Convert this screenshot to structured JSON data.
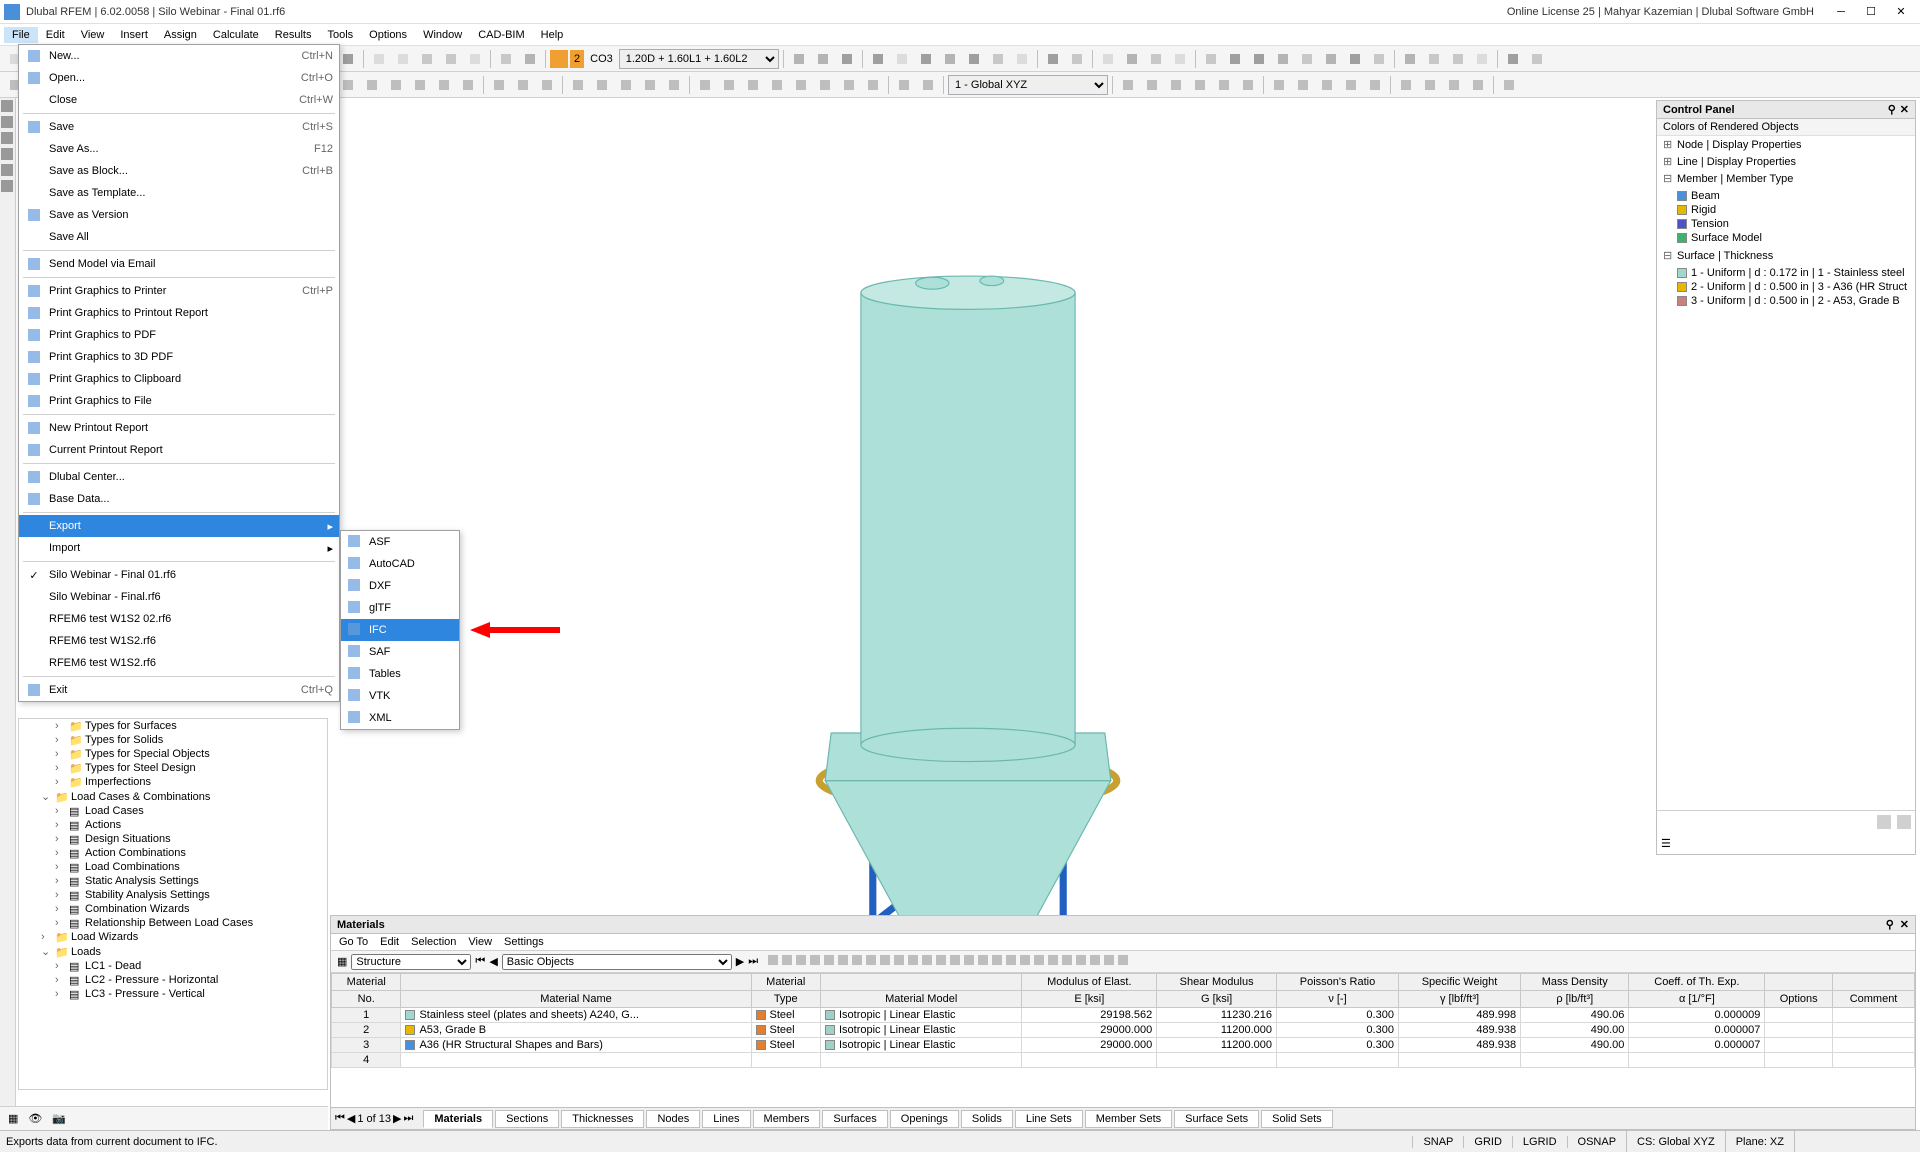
{
  "title": "Dlubal RFEM | 6.02.0058 | Silo Webinar - Final 01.rf6",
  "license": "Online License 25 | Mahyar Kazemian | Dlubal Software GmbH",
  "menubar": [
    "File",
    "Edit",
    "View",
    "Insert",
    "Assign",
    "Calculate",
    "Results",
    "Tools",
    "Options",
    "Window",
    "CAD-BIM",
    "Help"
  ],
  "toolbar2": {
    "combo": "CO3",
    "combo_detail": "1.20D + 1.60L1 + 1.60L2",
    "num": "2",
    "global": "1 - Global XYZ"
  },
  "file_menu": [
    {
      "t": "item",
      "label": "New...",
      "key": "Ctrl+N",
      "icon": "new"
    },
    {
      "t": "item",
      "label": "Open...",
      "key": "Ctrl+O",
      "icon": "open"
    },
    {
      "t": "item",
      "label": "Close",
      "key": "Ctrl+W"
    },
    {
      "t": "sep"
    },
    {
      "t": "item",
      "label": "Save",
      "key": "Ctrl+S",
      "icon": "save"
    },
    {
      "t": "item",
      "label": "Save As...",
      "key": "F12"
    },
    {
      "t": "item",
      "label": "Save as Block...",
      "key": "Ctrl+B"
    },
    {
      "t": "item",
      "label": "Save as Template..."
    },
    {
      "t": "item",
      "label": "Save as Version",
      "icon": "ver"
    },
    {
      "t": "item",
      "label": "Save All"
    },
    {
      "t": "sep"
    },
    {
      "t": "item",
      "label": "Send Model via Email",
      "icon": "mail"
    },
    {
      "t": "sep"
    },
    {
      "t": "item",
      "label": "Print Graphics to Printer",
      "key": "Ctrl+P",
      "icon": "print"
    },
    {
      "t": "item",
      "label": "Print Graphics to Printout Report",
      "icon": "rep"
    },
    {
      "t": "item",
      "label": "Print Graphics to PDF",
      "icon": "pdf"
    },
    {
      "t": "item",
      "label": "Print Graphics to 3D PDF",
      "icon": "3dpdf"
    },
    {
      "t": "item",
      "label": "Print Graphics to Clipboard",
      "icon": "clip"
    },
    {
      "t": "item",
      "label": "Print Graphics to File",
      "icon": "file"
    },
    {
      "t": "sep"
    },
    {
      "t": "item",
      "label": "New Printout Report",
      "icon": "newrep"
    },
    {
      "t": "item",
      "label": "Current Printout Report",
      "icon": "currep"
    },
    {
      "t": "sep"
    },
    {
      "t": "item",
      "label": "Dlubal Center...",
      "icon": "dl"
    },
    {
      "t": "item",
      "label": "Base Data...",
      "icon": "base"
    },
    {
      "t": "sep"
    },
    {
      "t": "item",
      "label": "Export",
      "sub": true,
      "hl": true
    },
    {
      "t": "item",
      "label": "Import",
      "sub": true
    },
    {
      "t": "sep"
    },
    {
      "t": "item",
      "label": "Silo Webinar - Final 01.rf6",
      "check": true
    },
    {
      "t": "item",
      "label": "Silo Webinar - Final.rf6"
    },
    {
      "t": "item",
      "label": "RFEM6 test W1S2 02.rf6"
    },
    {
      "t": "item",
      "label": "RFEM6 test W1S2.rf6"
    },
    {
      "t": "item",
      "label": "RFEM6 test W1S2.rf6"
    },
    {
      "t": "sep"
    },
    {
      "t": "item",
      "label": "Exit",
      "key": "Ctrl+Q",
      "icon": "exit"
    }
  ],
  "export_sub": [
    "ASF",
    "AutoCAD",
    "DXF",
    "glTF",
    "IFC",
    "SAF",
    "Tables",
    "VTK",
    "XML"
  ],
  "export_hl_index": 4,
  "panel": {
    "title": "Control Panel",
    "sub": "Colors of Rendered Objects",
    "groups": [
      {
        "label": "Node | Display Properties"
      },
      {
        "label": "Line | Display Properties"
      },
      {
        "label": "Member | Member Type",
        "exp": true,
        "items": [
          {
            "c": "#4a90d9",
            "t": "Beam"
          },
          {
            "c": "#e6b800",
            "t": "Rigid"
          },
          {
            "c": "#5050c8",
            "t": "Tension"
          },
          {
            "c": "#3cb371",
            "t": "Surface Model"
          }
        ]
      },
      {
        "label": "Surface | Thickness",
        "exp": true,
        "items": [
          {
            "c": "#9fd8d0",
            "t": "1 - Uniform | d : 0.172 in | 1 - Stainless steel"
          },
          {
            "c": "#e6b800",
            "t": "2 - Uniform | d : 0.500 in | 3 - A36 (HR Struct"
          },
          {
            "c": "#c88080",
            "t": "3 - Uniform | d : 0.500 in | 2 - A53, Grade B"
          }
        ]
      }
    ]
  },
  "tree_rows": [
    {
      "ind": 2,
      "icon": "f",
      "label": "Types for Surfaces"
    },
    {
      "ind": 2,
      "icon": "f",
      "label": "Types for Solids"
    },
    {
      "ind": 2,
      "icon": "f",
      "label": "Types for Special Objects"
    },
    {
      "ind": 2,
      "icon": "f",
      "label": "Types for Steel Design"
    },
    {
      "ind": 2,
      "icon": "f",
      "label": "Imperfections"
    },
    {
      "ind": 1,
      "icon": "f",
      "label": "Load Cases & Combinations",
      "exp": true
    },
    {
      "ind": 2,
      "icon": "i",
      "label": "Load Cases"
    },
    {
      "ind": 2,
      "icon": "i",
      "label": "Actions"
    },
    {
      "ind": 2,
      "icon": "i",
      "label": "Design Situations"
    },
    {
      "ind": 2,
      "icon": "i",
      "label": "Action Combinations"
    },
    {
      "ind": 2,
      "icon": "i",
      "label": "Load Combinations"
    },
    {
      "ind": 2,
      "icon": "i",
      "label": "Static Analysis Settings"
    },
    {
      "ind": 2,
      "icon": "i",
      "label": "Stability Analysis Settings"
    },
    {
      "ind": 2,
      "icon": "i",
      "label": "Combination Wizards"
    },
    {
      "ind": 2,
      "icon": "i",
      "label": "Relationship Between Load Cases"
    },
    {
      "ind": 1,
      "icon": "f",
      "label": "Load Wizards"
    },
    {
      "ind": 1,
      "icon": "f",
      "label": "Loads",
      "exp": true
    },
    {
      "ind": 2,
      "icon": "i",
      "label": "LC1 - Dead"
    },
    {
      "ind": 2,
      "icon": "i",
      "label": "LC2 - Pressure - Horizontal"
    },
    {
      "ind": 2,
      "icon": "i",
      "label": "LC3 - Pressure - Vertical"
    }
  ],
  "bottom": {
    "title": "Materials",
    "menu": [
      "Go To",
      "Edit",
      "Selection",
      "View",
      "Settings"
    ],
    "structure_label": "Structure",
    "basic_label": "Basic Objects",
    "nav": "1 of 13",
    "tabs": [
      "Materials",
      "Sections",
      "Thicknesses",
      "Nodes",
      "Lines",
      "Members",
      "Surfaces",
      "Openings",
      "Solids",
      "Line Sets",
      "Member Sets",
      "Surface Sets",
      "Solid Sets"
    ],
    "active_tab": 0,
    "cols": [
      {
        "h1": "Material",
        "h2": "No."
      },
      {
        "h1": "",
        "h2": "Material Name"
      },
      {
        "h1": "Material",
        "h2": "Type"
      },
      {
        "h1": "",
        "h2": "Material Model"
      },
      {
        "h1": "Modulus of Elast.",
        "h2": "E [ksi]"
      },
      {
        "h1": "Shear Modulus",
        "h2": "G [ksi]"
      },
      {
        "h1": "Poisson's Ratio",
        "h2": "ν [-]"
      },
      {
        "h1": "Specific Weight",
        "h2": "γ [lbf/ft³]"
      },
      {
        "h1": "Mass Density",
        "h2": "ρ [lb/ft³]"
      },
      {
        "h1": "Coeff. of Th. Exp.",
        "h2": "α [1/°F]"
      },
      {
        "h1": "",
        "h2": "Options"
      },
      {
        "h1": "",
        "h2": "Comment"
      }
    ],
    "rows": [
      {
        "no": "1",
        "name": "Stainless steel (plates and sheets) A240, G...",
        "c": "#9fd8d0",
        "type": "Steel",
        "tc": "#e08030",
        "model": "Isotropic | Linear Elastic",
        "mc": "#a0d0c8",
        "e": "29198.562",
        "g": "11230.216",
        "v": "0.300",
        "sw": "489.998",
        "md": "490.06",
        "a": "0.000009"
      },
      {
        "no": "2",
        "name": "A53, Grade B",
        "c": "#e6b800",
        "type": "Steel",
        "tc": "#e08030",
        "model": "Isotropic | Linear Elastic",
        "mc": "#a0d0c8",
        "e": "29000.000",
        "g": "11200.000",
        "v": "0.300",
        "sw": "489.938",
        "md": "490.00",
        "a": "0.000007"
      },
      {
        "no": "3",
        "name": "A36 (HR Structural Shapes and Bars)",
        "c": "#4a90d9",
        "type": "Steel",
        "tc": "#e08030",
        "model": "Isotropic | Linear Elastic",
        "mc": "#a0d0c8",
        "e": "29000.000",
        "g": "11200.000",
        "v": "0.300",
        "sw": "489.938",
        "md": "490.00",
        "a": "0.000007"
      },
      {
        "no": "4",
        "name": "",
        "c": "",
        "type": "",
        "tc": "",
        "model": "",
        "mc": "",
        "e": "",
        "g": "",
        "v": "",
        "sw": "",
        "md": "",
        "a": ""
      }
    ]
  },
  "status": {
    "left": "Exports data from current document to IFC.",
    "items": [
      "SNAP",
      "GRID",
      "LGRID",
      "OSNAP"
    ],
    "cs": "CS: Global XYZ",
    "plane": "Plane: XZ"
  }
}
